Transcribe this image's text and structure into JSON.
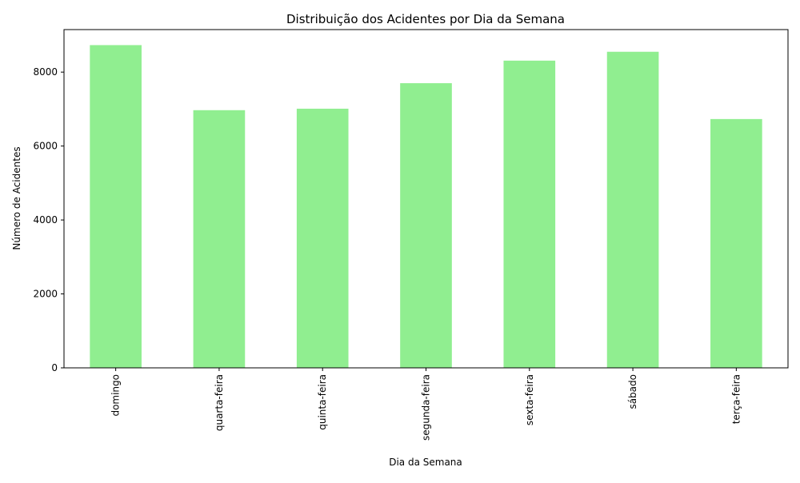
{
  "chart_data": {
    "type": "bar",
    "title": "Distribuição dos Acidentes por Dia da Semana",
    "xlabel": "Dia da Semana",
    "ylabel": "Número de Acidentes",
    "categories": [
      "domingo",
      "quarta-feira",
      "quinta-feira",
      "segunda-feira",
      "sexta-feira",
      "sábado",
      "terça-feira"
    ],
    "values": [
      8730,
      6970,
      7010,
      7700,
      8310,
      8550,
      6730
    ],
    "ylim": [
      0,
      9150
    ],
    "yticks": [
      0,
      2000,
      4000,
      6000,
      8000
    ],
    "bar_color": "#90ee90",
    "grid": false,
    "legend": false
  }
}
